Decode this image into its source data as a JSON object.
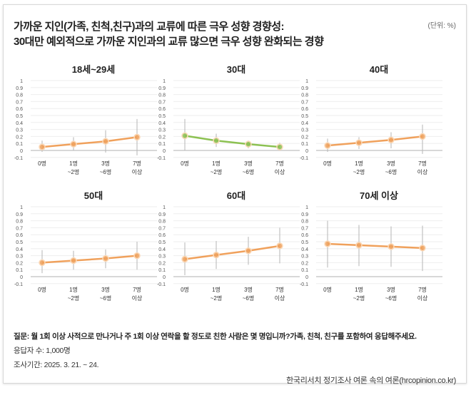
{
  "header": {
    "title_line1": "가까운 지인(가족, 친척,친구)과의 교류에 따른 극우 성향 경향성:",
    "title_line2": "30대만 예외적으로 가까운 지인과의 교류 많으면 극우 성향 완화되는 경향",
    "unit": "(단위: %)"
  },
  "footer": {
    "question": "질문: 월 1회 이상 사적으로 만나거나 주 1회 이상 연락을 할 정도로 친한 사람은 몇 명입니까?가족, 친척, 친구를 포함하여 응답해주세요.",
    "respondents": "응답자 수: 1,000명",
    "period": "조사기간: 2025. 3. 21. ~ 24.",
    "source": "한국리서치 정기조사 여론 속의 여론(hrcopinion.co.kr)"
  },
  "colors": {
    "orange": "#f0a15c",
    "green": "#8cc152",
    "errorbar": "#b5b5b5",
    "grid": "#eeeeee",
    "zero": "#cccccc"
  },
  "chart_data": [
    {
      "type": "line",
      "title": "18세~29세",
      "categories": [
        [
          "0명"
        ],
        [
          "1명",
          "~2명"
        ],
        [
          "3명",
          "~6명"
        ],
        [
          "7명",
          "이상"
        ]
      ],
      "values": [
        0.05,
        0.09,
        0.13,
        0.19
      ],
      "error_low": [
        -0.02,
        0.0,
        -0.03,
        -0.07
      ],
      "error_high": [
        0.14,
        0.19,
        0.29,
        0.45
      ],
      "color": "orange",
      "ylim": [
        -0.1,
        1
      ],
      "yticks": [
        "1",
        "0.9",
        "0.8",
        "0.7",
        "0.6",
        "0.5",
        "0.4",
        "0.3",
        "0.2",
        "0.1",
        "0",
        "-0.1"
      ]
    },
    {
      "type": "line",
      "title": "30대",
      "categories": [
        [
          "0명"
        ],
        [
          "1명",
          "~2명"
        ],
        [
          "3명",
          "~6명"
        ],
        [
          "7명",
          "이상"
        ]
      ],
      "values": [
        0.21,
        0.14,
        0.09,
        0.05
      ],
      "error_low": [
        0.0,
        0.05,
        0.03,
        0.0
      ],
      "error_high": [
        0.45,
        0.24,
        0.14,
        0.11
      ],
      "color": "green",
      "ylim": [
        -0.1,
        1
      ],
      "yticks": [
        "1",
        "0.9",
        "0.8",
        "0.7",
        "0.6",
        "0.5",
        "0.4",
        "0.3",
        "0.2",
        "0.1",
        "0",
        "-0.1"
      ]
    },
    {
      "type": "line",
      "title": "40대",
      "categories": [
        [
          "0명"
        ],
        [
          "1명",
          "~2명"
        ],
        [
          "3명",
          "~6명"
        ],
        [
          "7명",
          "이상"
        ]
      ],
      "values": [
        0.07,
        0.11,
        0.15,
        0.2
      ],
      "error_low": [
        -0.02,
        0.02,
        0.03,
        -0.05
      ],
      "error_high": [
        0.17,
        0.19,
        0.26,
        0.37
      ],
      "color": "orange",
      "ylim": [
        -0.1,
        1
      ],
      "yticks": [
        "1",
        "0.9",
        "0.8",
        "0.7",
        "0.6",
        "0.5",
        "0.4",
        "0.3",
        "0.2",
        "0.1",
        "0",
        "-0.1"
      ]
    },
    {
      "type": "line",
      "title": "50대",
      "categories": [
        [
          "0명"
        ],
        [
          "1명",
          "~2명"
        ],
        [
          "3명",
          "~6명"
        ],
        [
          "7명",
          "이상"
        ]
      ],
      "values": [
        0.2,
        0.23,
        0.26,
        0.3
      ],
      "error_low": [
        0.05,
        0.1,
        0.12,
        0.1
      ],
      "error_high": [
        0.38,
        0.37,
        0.39,
        0.5
      ],
      "color": "orange",
      "ylim": [
        -0.1,
        1
      ],
      "yticks": [
        "1",
        "0.9",
        "0.8",
        "0.7",
        "0.6",
        "0.5",
        "0.4",
        "0.3",
        "0.2",
        "0.1",
        "0",
        "-0.1"
      ]
    },
    {
      "type": "line",
      "title": "60대",
      "categories": [
        [
          "0명"
        ],
        [
          "1명",
          "~2명"
        ],
        [
          "3명",
          "~6명"
        ],
        [
          "7명",
          "이상"
        ]
      ],
      "values": [
        0.25,
        0.31,
        0.37,
        0.44
      ],
      "error_low": [
        0.02,
        0.11,
        0.17,
        0.19
      ],
      "error_high": [
        0.49,
        0.51,
        0.57,
        0.7
      ],
      "color": "orange",
      "ylim": [
        -0.1,
        1
      ],
      "yticks": [
        "1",
        "0.9",
        "0.8",
        "0.7",
        "0.6",
        "0.5",
        "0.4",
        "0.3",
        "0.2",
        "0.1",
        "0",
        "-0.1"
      ]
    },
    {
      "type": "line",
      "title": "70세 이상",
      "categories": [
        [
          "0명"
        ],
        [
          "1명",
          "~2명"
        ],
        [
          "3명",
          "~6명"
        ],
        [
          "7명",
          "이상"
        ]
      ],
      "values": [
        0.47,
        0.45,
        0.43,
        0.41
      ],
      "error_low": [
        0.13,
        0.15,
        0.14,
        0.08
      ],
      "error_high": [
        0.8,
        0.74,
        0.72,
        0.73
      ],
      "color": "orange",
      "ylim": [
        -0.1,
        1
      ],
      "yticks": [
        "1",
        "0.9",
        "0.8",
        "0.7",
        "0.6",
        "0.5",
        "0.4",
        "0.3",
        "0.2",
        "0.1",
        "0",
        "-0.1"
      ]
    }
  ]
}
